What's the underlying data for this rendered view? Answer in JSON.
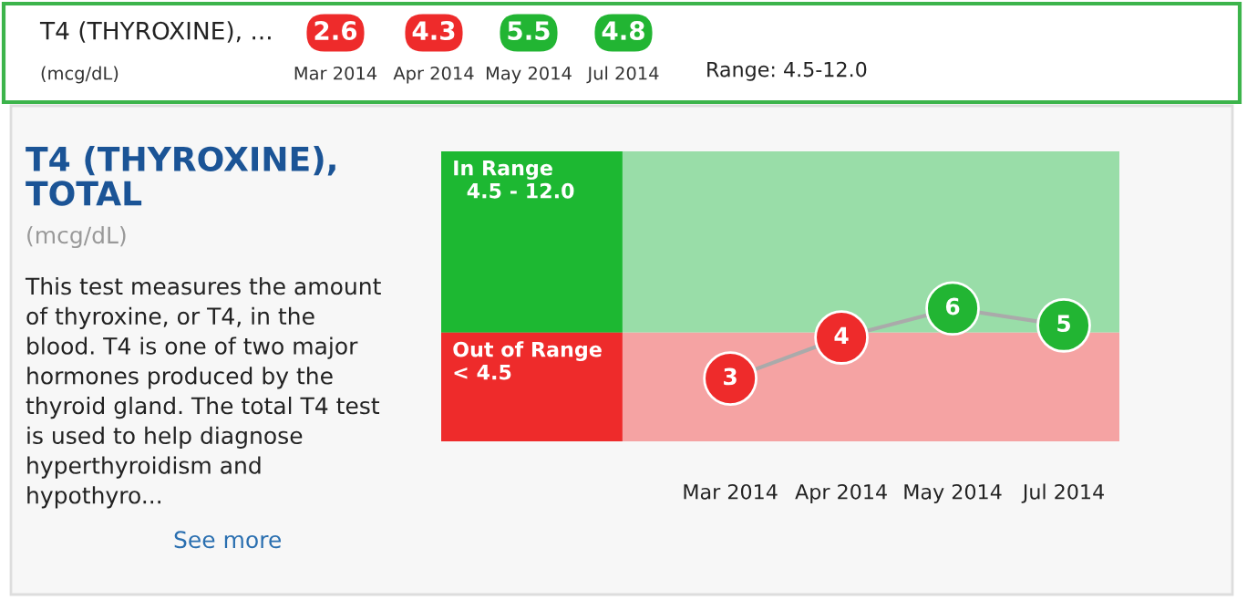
{
  "chart_data": {
    "type": "line",
    "title": "T4 (THYROXINE), TOTAL",
    "subtitle": "(mcg/dL)",
    "categories": [
      "Mar 2014",
      "Apr 2014",
      "May 2014",
      "Jul 2014"
    ],
    "values": [
      2.6,
      4.3,
      5.5,
      4.8
    ],
    "value_labels": [
      "3",
      "4",
      "6",
      "5"
    ],
    "colors": [
      "#ee2b2b",
      "#ee2b2b",
      "#22b533",
      "#22b533"
    ],
    "color": "#aaaaaa",
    "marker": "circle",
    "bands": [
      {
        "axis": "y",
        "from": 4.5,
        "to": 12.0,
        "label": "In Range\n  4.5 - 12.0",
        "color": "#99dda8"
      },
      {
        "axis": "y",
        "from": 0,
        "to": 4.5,
        "label": "Out of Range\n< 4.5",
        "color": "#f5a3a3"
      }
    ],
    "annotations": [
      "T4 (THYROXINE), ...",
      "(mcg/dL)",
      "Range: 4.5-12.0",
      "This test measures the amount\nof thyroxine, or T4, in the\nblood. T4 is one of two major\nhormones produced by the\nthyroid gland. The total T4 test\nis used to help diagnose\nhyperthyroidism and\nhypothyro...",
      "See more",
      "2.6",
      "4.3",
      "5.5",
      "4.8"
    ]
  }
}
